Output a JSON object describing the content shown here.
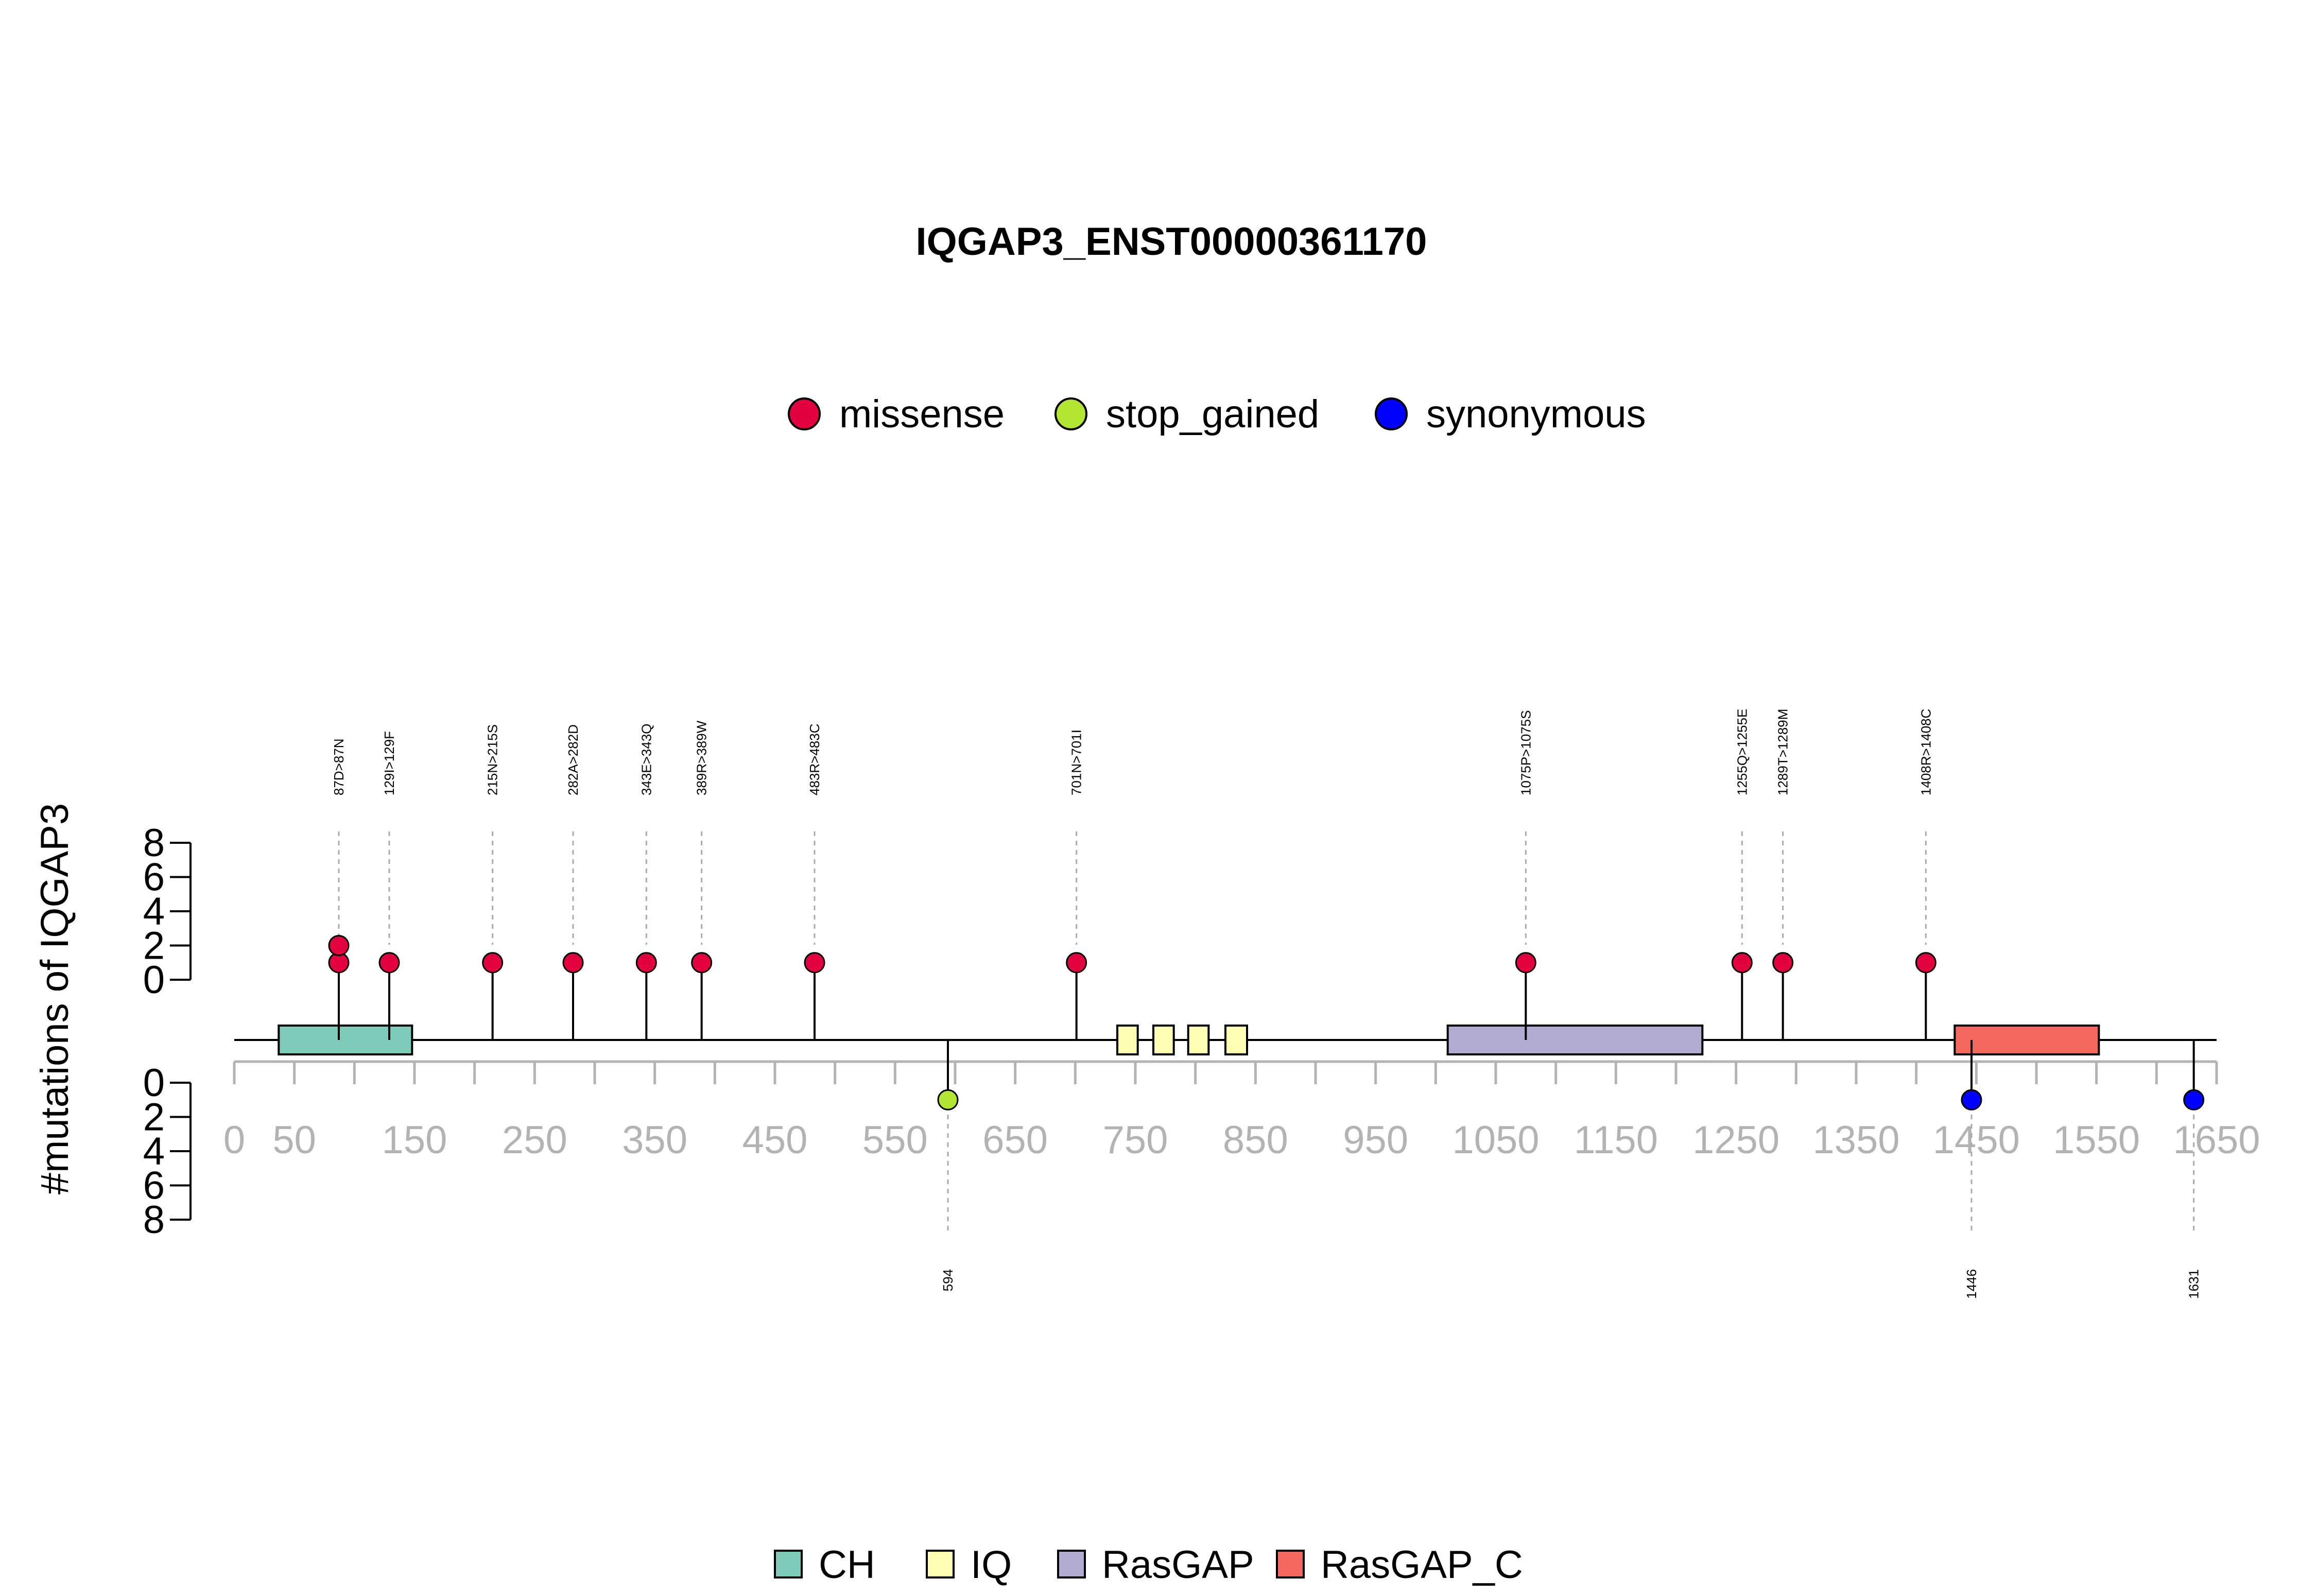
{
  "chart_data": {
    "type": "lollipop",
    "title": "IQGAP3_ENST00000361170",
    "ylabel": "#mutations of IQGAP3",
    "protein_length": 1631,
    "xlim": [
      0,
      1650
    ],
    "x_ticks": [
      0,
      50,
      150,
      250,
      350,
      450,
      550,
      650,
      750,
      850,
      950,
      1050,
      1150,
      1250,
      1350,
      1450,
      1550,
      1650
    ],
    "y_top_ticks": [
      0,
      2,
      4,
      6,
      8
    ],
    "y_bottom_ticks": [
      0,
      2,
      4,
      6,
      8
    ],
    "legend_mutations": [
      {
        "name": "missense",
        "color": "#e3003f"
      },
      {
        "name": "stop_gained",
        "color": "#b3e632"
      },
      {
        "name": "synonymous",
        "color": "#0000ff"
      }
    ],
    "legend_domains": [
      {
        "name": "CH",
        "color": "#7fcbb9"
      },
      {
        "name": "IQ",
        "color": "#ffffb3"
      },
      {
        "name": "RasGAP",
        "color": "#b2abd2"
      },
      {
        "name": "RasGAP_C",
        "color": "#f4675d"
      }
    ],
    "domains": [
      {
        "name": "CH",
        "start": 37,
        "end": 148
      },
      {
        "name": "IQ",
        "start": 735,
        "end": 752
      },
      {
        "name": "IQ",
        "start": 765,
        "end": 782
      },
      {
        "name": "IQ",
        "start": 794,
        "end": 811
      },
      {
        "name": "IQ",
        "start": 825,
        "end": 843
      },
      {
        "name": "RasGAP",
        "start": 1010,
        "end": 1222
      },
      {
        "name": "RasGAP_C",
        "start": 1432,
        "end": 1552
      }
    ],
    "top_mutations": [
      {
        "position": 87,
        "label": "87D>87N",
        "count": 2,
        "type": "missense"
      },
      {
        "position": 129,
        "label": "129I>129F",
        "count": 1,
        "type": "missense"
      },
      {
        "position": 215,
        "label": "215N>215S",
        "count": 1,
        "type": "missense"
      },
      {
        "position": 282,
        "label": "282A>282D",
        "count": 1,
        "type": "missense"
      },
      {
        "position": 343,
        "label": "343E>343Q",
        "count": 1,
        "type": "missense"
      },
      {
        "position": 389,
        "label": "389R>389W",
        "count": 1,
        "type": "missense"
      },
      {
        "position": 483,
        "label": "483R>483C",
        "count": 1,
        "type": "missense"
      },
      {
        "position": 701,
        "label": "701N>701I",
        "count": 1,
        "type": "missense"
      },
      {
        "position": 1075,
        "label": "1075P>1075S",
        "count": 1,
        "type": "missense"
      },
      {
        "position": 1255,
        "label": "1255Q>1255E",
        "count": 1,
        "type": "missense"
      },
      {
        "position": 1289,
        "label": "1289T>1289M",
        "count": 1,
        "type": "missense"
      },
      {
        "position": 1408,
        "label": "1408R>1408C",
        "count": 1,
        "type": "missense"
      }
    ],
    "bottom_mutations": [
      {
        "position": 594,
        "label": "594",
        "count": 1,
        "type": "stop_gained"
      },
      {
        "position": 1446,
        "label": "1446",
        "count": 1,
        "type": "synonymous"
      },
      {
        "position": 1631,
        "label": "1631",
        "count": 1,
        "type": "synonymous"
      }
    ]
  }
}
